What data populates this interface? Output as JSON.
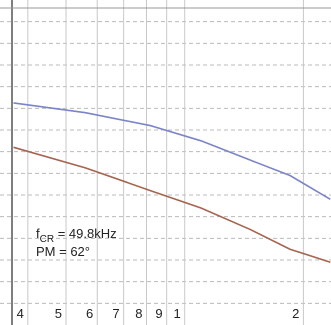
{
  "chart_data": {
    "type": "line",
    "x": [
      3.68,
      5.6,
      8.2,
      11,
      14.7,
      18.5,
      23.4
    ],
    "series": [
      {
        "color": "#7c84c8",
        "values": [
          10.25,
          9.8,
          9.2,
          8.5,
          7.6,
          6.9,
          5.8
        ]
      },
      {
        "color": "#a5644e",
        "values": [
          8.2,
          7.25,
          6.2,
          5.4,
          4.4,
          3.5,
          2.9
        ]
      }
    ],
    "xscale": "log",
    "xlim": [
      3.4,
      23.5
    ],
    "xticks": [
      4,
      5,
      6,
      7,
      8,
      9,
      {
        "value": 10,
        "label": "1"
      },
      {
        "value": 20,
        "label": "2"
      }
    ],
    "ylim": [
      0,
      15
    ],
    "yticks": [
      1,
      2,
      3,
      4,
      5,
      6,
      7,
      8,
      9,
      10,
      11,
      12,
      13,
      14
    ],
    "grid": true,
    "annotations": [
      {
        "symbol": "f",
        "subscript": "CR",
        "text": " = 49.8kHz"
      },
      {
        "text": "PM = 62°"
      }
    ]
  }
}
